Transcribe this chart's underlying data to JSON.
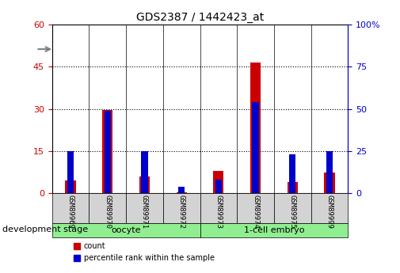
{
  "title": "GDS2387 / 1442423_at",
  "samples": [
    "GSM89969",
    "GSM89970",
    "GSM89971",
    "GSM89972",
    "GSM89973",
    "GSM89974",
    "GSM89975",
    "GSM89999"
  ],
  "count_values": [
    4.5,
    29.5,
    6.0,
    0.5,
    8.0,
    46.5,
    4.0,
    7.5
  ],
  "percentile_values": [
    25,
    49,
    25,
    4,
    8,
    54,
    23,
    25
  ],
  "groups": [
    {
      "label": "oocyte",
      "indices": [
        0,
        1,
        2,
        3
      ],
      "color": "#90EE90"
    },
    {
      "label": "1-cell embryo",
      "indices": [
        4,
        5,
        6,
        7
      ],
      "color": "#90EE90"
    }
  ],
  "left_ylim": [
    0,
    60
  ],
  "left_yticks": [
    0,
    15,
    30,
    45,
    60
  ],
  "right_ylim": [
    0,
    100
  ],
  "right_yticks": [
    0,
    25,
    50,
    75,
    100
  ],
  "left_ycolor": "#cc0000",
  "right_ycolor": "#0000cc",
  "bar_color_count": "#cc0000",
  "bar_color_pct": "#0000cc",
  "bar_width": 0.35,
  "bg_color": "#ffffff",
  "plot_bg": "#ffffff",
  "tick_label_area_color": "#d3d3d3",
  "grid_color": "#000000",
  "annotation_label": "development stage",
  "legend_count": "count",
  "legend_pct": "percentile rank within the sample"
}
